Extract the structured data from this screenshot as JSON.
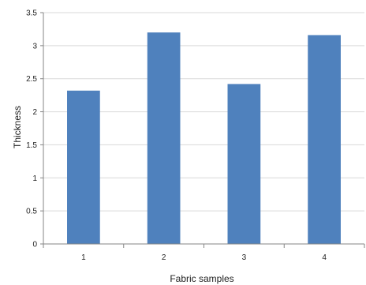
{
  "chart_data": {
    "type": "bar",
    "categories": [
      "1",
      "2",
      "3",
      "4"
    ],
    "values": [
      2.32,
      3.2,
      2.42,
      3.16
    ],
    "title": "",
    "xlabel": "Fabric samples",
    "ylabel": "Thickness",
    "ylim": [
      0,
      3.5
    ],
    "yticks": [
      "0",
      "0.5",
      "1",
      "1.5",
      "2",
      "2.5",
      "3",
      "3.5"
    ],
    "grid": true,
    "legend": "none",
    "bar_color": "#4F81BD",
    "grid_color": "#D9D9D9",
    "axis_color": "#868686"
  }
}
